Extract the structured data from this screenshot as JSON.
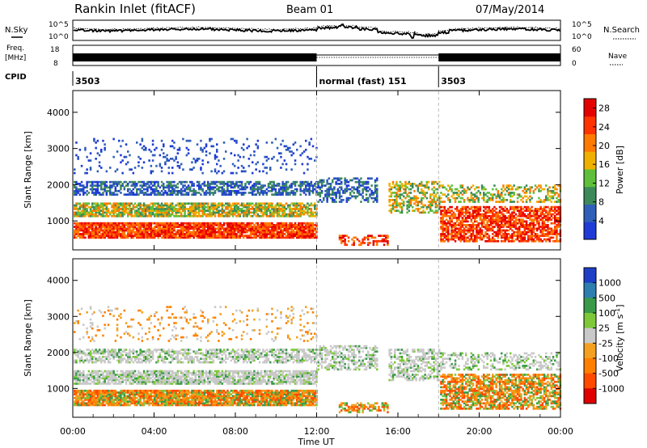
{
  "header": {
    "station": "Rankin Inlet (fitACF)",
    "beam": "Beam 01",
    "date": "07/May/2014"
  },
  "colors": {
    "power_scale": [
      "#1f3ad6",
      "#2f5fb8",
      "#3c8a5a",
      "#5fbf3a",
      "#f0b000",
      "#ff7a00",
      "#ff3300",
      "#e50000"
    ],
    "velocity_scale": [
      "#1e3fc6",
      "#2e7fb0",
      "#3a9a4a",
      "#7ec83a",
      "#c9c9c9",
      "#f4a020",
      "#ff7f00",
      "#ff4a00",
      "#e00000"
    ]
  },
  "labels": {
    "nsky": "N.Sky",
    "nsearch": "N.Search",
    "freq": "Freq.",
    "freq_unit": "[MHz]",
    "cpid": "CPID",
    "nave": "Nave",
    "ns_tick_top": "10^5",
    "ns_tick_bottom": "10^0",
    "freq_tick_top": "18",
    "freq_tick_bottom": "8",
    "nave_tick_top": "60",
    "nave_tick_bottom": "0",
    "power_label": "Power [dB]",
    "velocity_label": "Velocity  [m s",
    "velocity_sup": "-1",
    "velocity_close": "]"
  },
  "cpid_segments": [
    {
      "label": "3503",
      "start_hour": 0
    },
    {
      "label": "normal (fast)  151",
      "start_hour": 12
    },
    {
      "label": "3503",
      "start_hour": 18
    }
  ],
  "chart_data": [
    {
      "type": "heatmap",
      "name": "power",
      "ylabel": "Slant Range [km]",
      "xlabel": "Time UT",
      "xlim": [
        0,
        24
      ],
      "ylim": [
        200,
        4600
      ],
      "yticks": [
        1000,
        2000,
        3000,
        4000
      ],
      "ytick_labels": [
        "1000",
        "2000",
        "3000",
        "4000"
      ],
      "colorbar": {
        "ticks": [
          4,
          8,
          12,
          16,
          20,
          24,
          28
        ],
        "tick_labels": [
          "4",
          "8",
          "12",
          "16",
          "20",
          "24",
          "28"
        ],
        "range": [
          0,
          30
        ]
      }
    },
    {
      "type": "heatmap",
      "name": "velocity",
      "ylabel": "Slant Range [km]",
      "xlabel": "Time UT",
      "xlim": [
        0,
        24
      ],
      "ylim": [
        200,
        4600
      ],
      "yticks": [
        1000,
        2000,
        3000,
        4000
      ],
      "ytick_labels": [
        "1000",
        "2000",
        "3000",
        "4000"
      ],
      "colorbar": {
        "tick_labels": [
          "1000",
          "500",
          "100",
          "25",
          "-25",
          "-100",
          "-500",
          "-1000"
        ]
      }
    }
  ],
  "xaxis": {
    "tick_hours": [
      0,
      4,
      8,
      12,
      16,
      20,
      24
    ],
    "tick_labels": [
      "00:00",
      "04:00",
      "08:00",
      "12:00",
      "16:00",
      "20:00",
      "00:00"
    ],
    "title": "Time UT"
  }
}
